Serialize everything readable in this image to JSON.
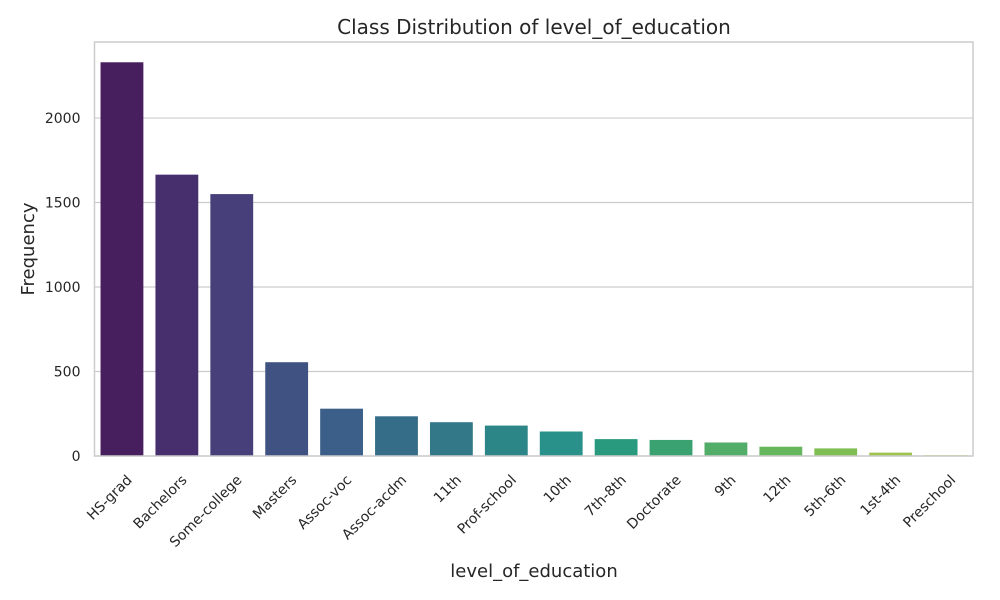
{
  "chart_data": {
    "type": "bar",
    "title": "Class Distribution of level_of_education",
    "xlabel": "level_of_education",
    "ylabel": "Frequency",
    "categories": [
      "HS-grad",
      "Bachelors",
      "Some-college",
      "Masters",
      "Assoc-voc",
      "Assoc-acdm",
      "11th",
      "Prof-school",
      "10th",
      "7th-8th",
      "Doctorate",
      "9th",
      "12th",
      "5th-6th",
      "1st-4th",
      "Preschool"
    ],
    "values": [
      2330,
      1665,
      1550,
      555,
      280,
      235,
      200,
      180,
      145,
      100,
      95,
      80,
      55,
      45,
      20,
      5
    ],
    "colors": [
      "#471e5e",
      "#472f6d",
      "#473f7a",
      "#3f5282",
      "#3b5f88",
      "#356c88",
      "#327888",
      "#2c8587",
      "#29908a",
      "#2a9a7f",
      "#3aa270",
      "#52ad69",
      "#66b65e",
      "#7fbe52",
      "#9ec44e",
      "#c3cc4c"
    ],
    "ylim": [
      0,
      2450
    ],
    "yticks": [
      0,
      500,
      1000,
      1500,
      2000
    ],
    "grid": true,
    "legend": "none"
  }
}
